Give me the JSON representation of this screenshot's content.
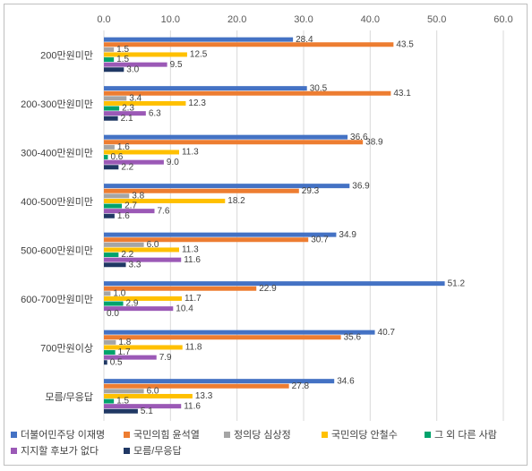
{
  "chart_data": {
    "type": "bar",
    "orientation": "horizontal",
    "title": "",
    "xlabel": "",
    "ylabel": "",
    "xlim": [
      0,
      60
    ],
    "x_ticks": [
      "0.0",
      "10.0",
      "20.0",
      "30.0",
      "40.0",
      "50.0",
      "60.0"
    ],
    "x_axis_position": "top",
    "grid": true,
    "legend_position": "bottom",
    "categories": [
      "200만원미만",
      "200-300만원미만",
      "300-400만원미만",
      "400-500만원미만",
      "500-600만원미만",
      "600-700만원미만",
      "700만원이상",
      "모름/무응답"
    ],
    "series": [
      {
        "name": "더불어민주당 이재명",
        "color": "#4472c4",
        "values": [
          28.4,
          30.5,
          36.6,
          36.9,
          34.9,
          51.2,
          40.7,
          34.6
        ],
        "labels": [
          "28.4",
          "30.5",
          "36.6",
          "36.9",
          "34.9",
          "51.2",
          "40.7",
          "34.6"
        ]
      },
      {
        "name": "국민의힘 윤석열",
        "color": "#ed7d31",
        "values": [
          43.5,
          43.1,
          38.9,
          29.3,
          30.7,
          22.9,
          35.6,
          27.8
        ],
        "labels": [
          "43.5",
          "43.1",
          "38.9",
          "29.3",
          "30.7",
          "22.9",
          "35.6",
          "27.8"
        ]
      },
      {
        "name": "정의당 심상정",
        "color": "#a5a5a5",
        "values": [
          1.5,
          3.4,
          1.6,
          3.8,
          6.0,
          1.0,
          1.8,
          6.0
        ],
        "labels": [
          "1.5",
          "3.4",
          "1.6",
          "3.8",
          "6.0",
          "1.0",
          "1.8",
          "6.0"
        ]
      },
      {
        "name": "국민의당 안철수",
        "color": "#ffc000",
        "values": [
          12.5,
          12.3,
          11.3,
          18.2,
          11.3,
          11.7,
          11.8,
          13.3
        ],
        "labels": [
          "12.5",
          "12.3",
          "11.3",
          "18.2",
          "11.3",
          "11.7",
          "11.8",
          "13.3"
        ]
      },
      {
        "name": "그 외 다른 사람",
        "color": "#00a36c",
        "values": [
          1.5,
          2.3,
          0.6,
          2.7,
          2.2,
          2.9,
          1.7,
          1.5
        ],
        "labels": [
          "1.5",
          "2.3",
          "0.6",
          "2.7",
          "2.2",
          "2.9",
          "1.7",
          "1.5"
        ]
      },
      {
        "name": "지지할 후보가 없다",
        "color": "#9b59b6",
        "values": [
          9.5,
          6.3,
          9.0,
          7.6,
          11.6,
          10.4,
          7.9,
          11.6
        ],
        "labels": [
          "9.5",
          "6.3",
          "9.0",
          "7.6",
          "11.6",
          "10.4",
          "7.9",
          "11.6"
        ]
      },
      {
        "name": "모름/무응답",
        "color": "#203864",
        "values": [
          3.0,
          2.1,
          2.2,
          1.6,
          3.3,
          0.0,
          0.5,
          5.1
        ],
        "labels": [
          "3.0",
          "2.1",
          "2.2",
          "1.6",
          "3.3",
          "0.0",
          "0.5",
          "5.1"
        ]
      }
    ]
  }
}
